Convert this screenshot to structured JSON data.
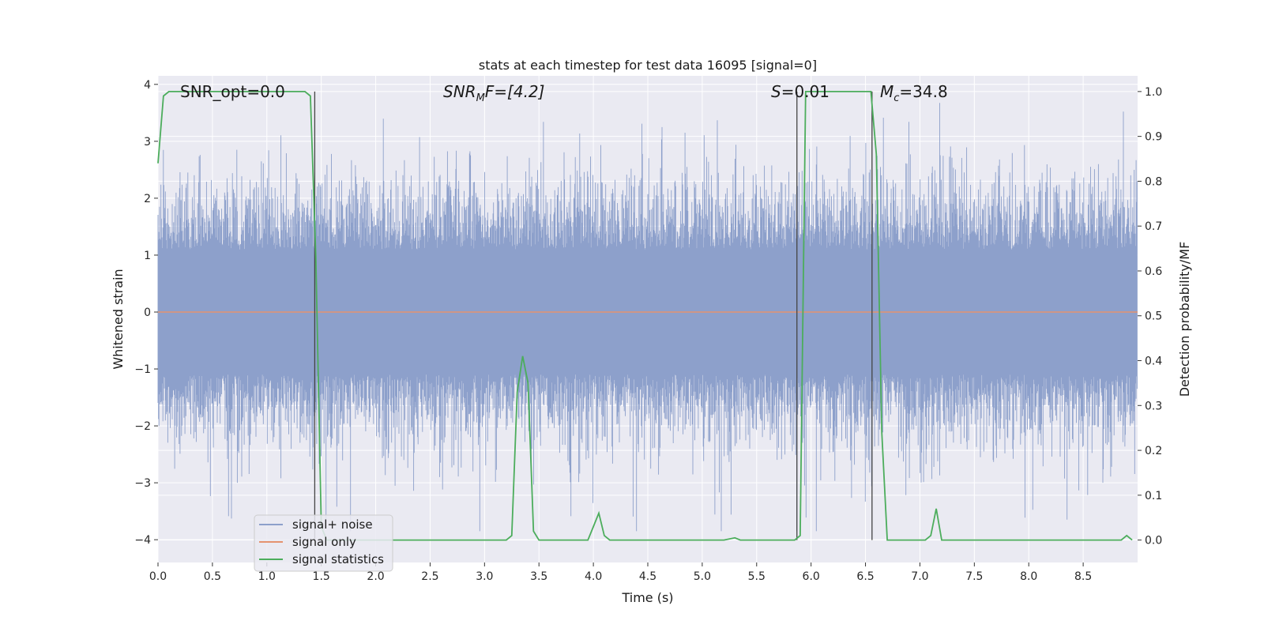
{
  "chart_data": {
    "type": "line",
    "title": "stats at each timestep for test data 16095 [signal=0]",
    "xlabel": "Time (s)",
    "ylabel": "Whitened strain",
    "y2label": "Detection probability/MF",
    "xlim": [
      0,
      9.0
    ],
    "ylim": [
      -4.4,
      4.15
    ],
    "y2lim": [
      -0.05,
      1.035
    ],
    "x_ticks": [
      0.0,
      0.5,
      1.0,
      1.5,
      2.0,
      2.5,
      3.0,
      3.5,
      4.0,
      4.5,
      5.0,
      5.5,
      6.0,
      6.5,
      7.0,
      7.5,
      8.0,
      8.5
    ],
    "x_tick_labels": [
      "0.0",
      "0.5",
      "1.0",
      "1.5",
      "2.0",
      "2.5",
      "3.0",
      "3.5",
      "4.0",
      "4.5",
      "5.0",
      "5.5",
      "6.0",
      "6.5",
      "7.0",
      "7.5",
      "8.0",
      "8.5"
    ],
    "y_ticks": [
      4,
      3,
      2,
      1,
      0,
      -1,
      -2,
      -3,
      -4
    ],
    "y_tick_labels": [
      "4",
      "3",
      "2",
      "1",
      "0",
      "−1",
      "−2",
      "−3",
      "−4"
    ],
    "y2_ticks": [
      1.0,
      0.9,
      0.8,
      0.7,
      0.6,
      0.5,
      0.4,
      0.3,
      0.2,
      0.1,
      0.0
    ],
    "y2_tick_labels": [
      "1.0",
      "0.9",
      "0.8",
      "0.7",
      "0.6",
      "0.5",
      "0.4",
      "0.3",
      "0.2",
      "0.1",
      "0.0"
    ],
    "grid": true,
    "legend_position": "lower-left",
    "colors": {
      "noise": "#8da0cb",
      "signal": "#e5936f",
      "stats": "#4cad5c",
      "vline": "#444444",
      "background": "#eaeaf2",
      "grid": "#ffffff"
    },
    "series": [
      {
        "name": "signal+ noise",
        "axis": "left",
        "description": "whitened strain noise, dense band roughly between -2.5 and +2.5 with spikes to about +/-3.8"
      },
      {
        "name": "signal only",
        "axis": "left",
        "x": [
          0.0,
          9.0
        ],
        "values": [
          0.0,
          0.0
        ]
      },
      {
        "name": "signal statistics",
        "axis": "right",
        "x": [
          0.0,
          0.05,
          0.1,
          1.35,
          1.4,
          1.45,
          1.5,
          1.55,
          3.2,
          3.25,
          3.3,
          3.35,
          3.4,
          3.45,
          3.5,
          3.95,
          4.0,
          4.05,
          4.1,
          4.15,
          5.2,
          5.3,
          5.35,
          5.85,
          5.9,
          5.95,
          6.55,
          6.6,
          6.65,
          6.7,
          6.75,
          7.05,
          7.1,
          7.15,
          7.2,
          8.85,
          8.9,
          8.95
        ],
        "values": [
          0.84,
          0.99,
          1.0,
          1.0,
          0.99,
          0.63,
          0.03,
          0.0,
          0.0,
          0.01,
          0.33,
          0.41,
          0.35,
          0.02,
          0.0,
          0.0,
          0.03,
          0.06,
          0.01,
          0.0,
          0.0,
          0.005,
          0.0,
          0.0,
          0.01,
          1.0,
          1.0,
          0.86,
          0.24,
          0.0,
          0.0,
          0.0,
          0.01,
          0.07,
          0.0,
          0.0,
          0.01,
          0.0
        ]
      }
    ],
    "vlines": [
      1.44,
      5.87,
      6.56
    ],
    "annotations": [
      {
        "id": "snr-opt",
        "text": "SNR_opt=0.0",
        "x": 0.2,
        "y": 1.0
      },
      {
        "id": "snr-mf",
        "text_main": "SNR",
        "text_sub": "M",
        "text_tail": "F=[4.2]",
        "x": 2.6,
        "y": 1.0
      },
      {
        "id": "s-stat",
        "text_italic": "S",
        "text_tail": "=0.01",
        "x": 5.6,
        "y": 1.0
      },
      {
        "id": "chirp-mass",
        "text_main": "M",
        "text_sub": "c",
        "text_tail": "=34.8",
        "x": 6.6,
        "y": 1.0
      }
    ]
  }
}
